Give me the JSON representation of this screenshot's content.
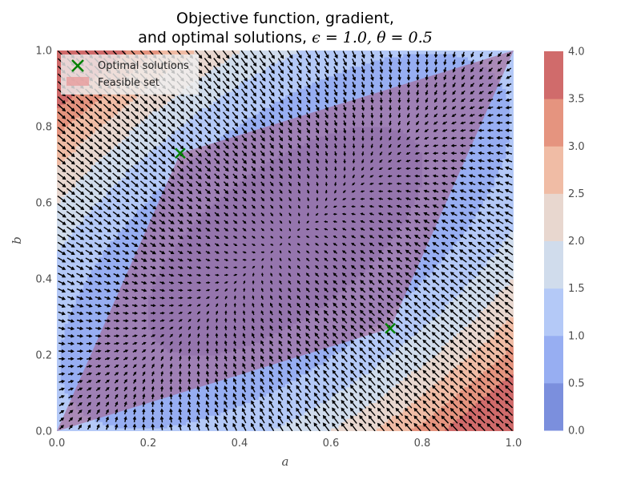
{
  "chart_data": {
    "type": "contour",
    "title_line1": "Objective function, gradient,",
    "title_line2_prefix": "and optimal solutions, ",
    "title_epsilon_label": "ϵ = 1.0, θ = 0.5",
    "parameters": {
      "epsilon": 1.0,
      "theta": 0.5
    },
    "xlabel": "a",
    "ylabel": "b",
    "xlim": [
      0.0,
      1.0
    ],
    "ylim": [
      0.0,
      1.0
    ],
    "xticks": [
      "0.0",
      "0.2",
      "0.4",
      "0.6",
      "0.8",
      "1.0"
    ],
    "yticks": [
      "0.0",
      "0.2",
      "0.4",
      "0.6",
      "0.8",
      "1.0"
    ],
    "contour_levels": [
      0.0,
      0.5,
      1.0,
      1.5,
      2.0,
      2.5,
      3.0,
      3.5,
      4.0
    ],
    "colorbar_ticks": [
      "0.0",
      "0.5",
      "1.0",
      "1.5",
      "2.0",
      "2.5",
      "3.0",
      "3.5",
      "4.0"
    ],
    "colormap": "coolwarm",
    "band_colors": [
      "#7b8fdd",
      "#97aef2",
      "#b4c9f7",
      "#d0dcec",
      "#e8d7cf",
      "#f0bca5",
      "#e5947f",
      "#d06b6b"
    ],
    "feasible_set": {
      "label": "Feasible set",
      "color": "#e8a0a0",
      "vertices": [
        [
          0.0,
          0.0
        ],
        [
          0.73,
          0.27
        ],
        [
          1.0,
          1.0
        ],
        [
          0.27,
          0.73
        ]
      ]
    },
    "optimal_solutions": {
      "label": "Optimal solutions",
      "color": "#008000",
      "points": [
        [
          0.27,
          0.73
        ],
        [
          0.73,
          0.27
        ]
      ]
    },
    "gradient_field": {
      "label": "gradient",
      "color": "#000000"
    },
    "legend_position": "upper-left",
    "grid": false
  }
}
